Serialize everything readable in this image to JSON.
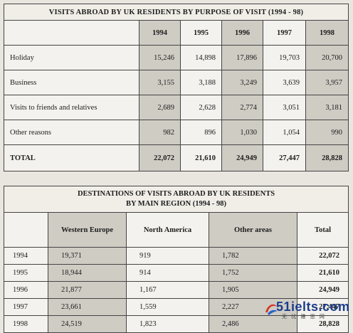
{
  "chart_data": [
    {
      "type": "table",
      "title": "VISITS ABROAD BY UK RESIDENTS BY PURPOSE OF VISIT (1994 - 98)",
      "columns": [
        "1994",
        "1995",
        "1996",
        "1997",
        "1998"
      ],
      "rows": [
        {
          "label": "Holiday",
          "values": [
            "15,246",
            "14,898",
            "17,896",
            "19,703",
            "20,700"
          ]
        },
        {
          "label": "Business",
          "values": [
            "3,155",
            "3,188",
            "3,249",
            "3,639",
            "3,957"
          ]
        },
        {
          "label": "Visits to friends and relatives",
          "values": [
            "2,689",
            "2,628",
            "2,774",
            "3,051",
            "3,181"
          ]
        },
        {
          "label": "Other reasons",
          "values": [
            "982",
            "896",
            "1,030",
            "1,054",
            "990"
          ]
        },
        {
          "label": "TOTAL",
          "values": [
            "22,072",
            "21,610",
            "24,949",
            "27,447",
            "28,828"
          ]
        }
      ]
    },
    {
      "type": "table",
      "title_line1": "DESTINATIONS OF VISITS ABROAD BY UK RESIDENTS",
      "title_line2": "BY MAIN REGION (1994 - 98)",
      "columns": [
        "Western Europe",
        "North America",
        "Other areas",
        "Total"
      ],
      "rows": [
        {
          "label": "1994",
          "values": [
            "19,371",
            "919",
            "1,782",
            "22,072"
          ]
        },
        {
          "label": "1995",
          "values": [
            "18,944",
            "914",
            "1,752",
            "21,610"
          ]
        },
        {
          "label": "1996",
          "values": [
            "21,877",
            "1,167",
            "1,905",
            "24,949"
          ]
        },
        {
          "label": "1997",
          "values": [
            "23,661",
            "1,559",
            "2,227",
            "27,447"
          ]
        },
        {
          "label": "1998",
          "values": [
            "24,519",
            "1,823",
            "2,486",
            "28,828"
          ]
        }
      ]
    }
  ],
  "watermark": {
    "logo": "51ielts.com",
    "subtitle": "无 忧 雅 思 网"
  }
}
